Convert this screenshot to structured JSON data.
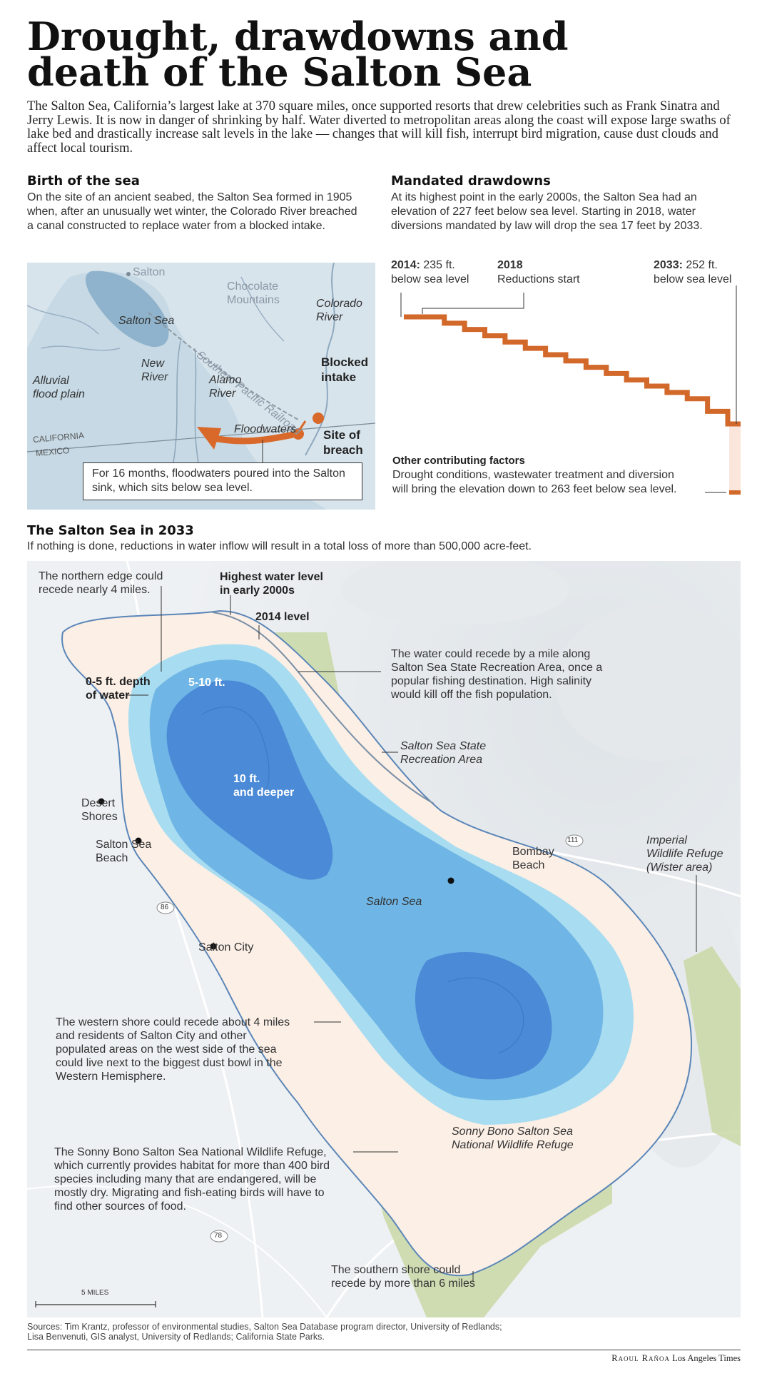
{
  "headline": [
    "Drought, drawdowns and",
    "death of the Salton Sea"
  ],
  "intro": "The Salton Sea, California’s largest lake at 370 square miles, once supported resorts that drew celebrities such as Frank Sinatra and Jerry Lewis. It is now in danger of shrinking by half. Water diverted to metropolitan areas along the coast will expose large swaths of lake bed and drastically increase salt levels in the lake — changes that will kill fish, interrupt bird migration, cause dust clouds and affect local tourism.",
  "birth": {
    "title": "Birth of the sea",
    "body": "On the site of an ancient seabed, the Salton Sea formed in 1905 when, after an unusually wet winter, the Colorado River breached a canal constructed to replace water from a blocked intake.",
    "map": {
      "salton": "Salton",
      "chocolate": [
        "Chocolate",
        "Mountains"
      ],
      "colorado": [
        "Colorado",
        "River"
      ],
      "salton_sea": "Salton Sea",
      "railroad": "Southern Pacific Railroad",
      "new_river": [
        "New",
        "River"
      ],
      "alamo_river": [
        "Alamo",
        "River"
      ],
      "blocked": [
        "Blocked",
        "intake"
      ],
      "alluvial": [
        "Alluvial",
        "flood plain"
      ],
      "floodwaters": "Floodwaters",
      "breach": [
        "Site of",
        "breach"
      ],
      "california": "CALIFORNIA",
      "mexico": "MEXICO",
      "caption": "For 16 months, floodwaters poured into the Salton sink, which sits below sea level."
    },
    "colors": {
      "water_light": "#a9c6d9",
      "water_mid": "#8fb3cc",
      "land": "#d8e4ec",
      "flood": "#d9692a"
    }
  },
  "drawdowns": {
    "title": "Mandated drawdowns",
    "body": "At its highest point in the early 2000s, the Salton Sea had an elevation of 227 feet below sea level. Starting in 2018, water diversions mandated by law will drop the sea 17 feet by 2033.",
    "label_2014_year": "2014:",
    "label_2014_rest": " 235 ft.",
    "label_2014_line2": "below sea level",
    "label_2018_year": "2018",
    "label_2018_line2": "Reductions start",
    "label_2033_year": "2033:",
    "label_2033_rest": " 252 ft.",
    "label_2033_line2": "below sea level",
    "other_title": "Other contributing factors",
    "other_body": [
      "Drought conditions, wastewater treatment and diversion",
      "will bring the elevation down to 263 feet below sea level."
    ],
    "step_color": "#d2692b"
  },
  "chart_data": {
    "type": "line",
    "title": "Mandated drawdowns",
    "xlabel": "",
    "ylabel": "",
    "x": [
      2014,
      2018,
      2019,
      2020,
      2021,
      2022,
      2023,
      2024,
      2025,
      2026,
      2027,
      2028,
      2029,
      2030,
      2031,
      2032,
      2033
    ],
    "series": [
      {
        "values": [
          -235,
          -235,
          -236,
          -237,
          -238,
          -239,
          -240,
          -241,
          -242,
          -243,
          -244,
          -245,
          -246,
          -247,
          -248,
          -250,
          -252
        ]
      }
    ],
    "annotations": [
      {
        "x": 2014,
        "y": -235,
        "text": "2014: 235 ft. below sea level"
      },
      {
        "x": 2018,
        "text": "2018 Reductions start"
      },
      {
        "x": 2033,
        "y": -252,
        "text": "2033: 252 ft. below sea level"
      },
      {
        "y": -263,
        "text": "Other contributing factors: 263 feet below sea level"
      }
    ]
  },
  "salton2033": {
    "title": "The Salton Sea in 2033",
    "subtitle": "If nothing is done, reductions in water inflow will result in a total loss of more than 500,000 acre-feet.",
    "labels": {
      "northern_edge": [
        "The northern edge could",
        "recede nearly 4 miles."
      ],
      "highest_level": [
        "Highest water level",
        "in early 2000s"
      ],
      "level_2014": "2014 level",
      "depth_0_5": [
        "0-5 ft. depth",
        "of water"
      ],
      "depth_5_10": "5-10 ft.",
      "depth_10": [
        "10 ft.",
        "and deeper"
      ],
      "recreation_note": [
        "The water could recede by a mile along",
        "Salton Sea State Recreation Area, once a",
        "popular fishing destination. High salinity",
        "would kill off the fish population."
      ],
      "recreation_area": [
        "Salton Sea State",
        "Recreation Area"
      ],
      "desert_shores": [
        "Desert",
        "Shores"
      ],
      "salton_sea_beach": [
        "Salton Sea",
        "Beach"
      ],
      "bombay_beach": [
        "Bombay",
        "Beach"
      ],
      "imperial": [
        "Imperial",
        "Wildlife Refuge",
        "(Wister area)"
      ],
      "route_111": "111",
      "route_86": "86",
      "route_78": "78",
      "salton_sea": "Salton Sea",
      "salton_city": "Salton City",
      "western_note": [
        "The western shore could recede about 4 miles",
        "and residents of Salton City and other",
        "populated areas on the west side of the sea",
        "could live next to the biggest dust bowl in the",
        "Western Hemisphere."
      ],
      "sonny_bono": [
        "Sonny Bono Salton Sea",
        "National Wildlife Refuge"
      ],
      "sonny_note": [
        "The Sonny Bono Salton Sea National Wildlife Refuge,",
        "which currently provides habitat for more than 400 bird",
        "species including many that are endangered, will be",
        "mostly dry. Migrating and fish-eating birds will have to",
        "find other sources of food."
      ],
      "southern_note": [
        "The southern shore could",
        "recede by more than 6 miles"
      ],
      "scale": "5 MILES"
    },
    "colors": {
      "shallow": "#a8dcf0",
      "mid": "#6fb6e6",
      "deep": "#4a8ad6",
      "exposed": "#fbefe6",
      "refuge": "#c9d8a6",
      "relief": "#eef1f3",
      "shore": "#5b86b8"
    }
  },
  "sources": [
    "Sources: Tim Krantz, professor of environmental studies, Salton Sea Database program director, University of Redlands;",
    "Lisa Benvenuti, GIS analyst, University of Redlands; California State Parks."
  ],
  "credit_name": "Raoul Rañoa",
  "credit_org": " Los Angeles Times"
}
